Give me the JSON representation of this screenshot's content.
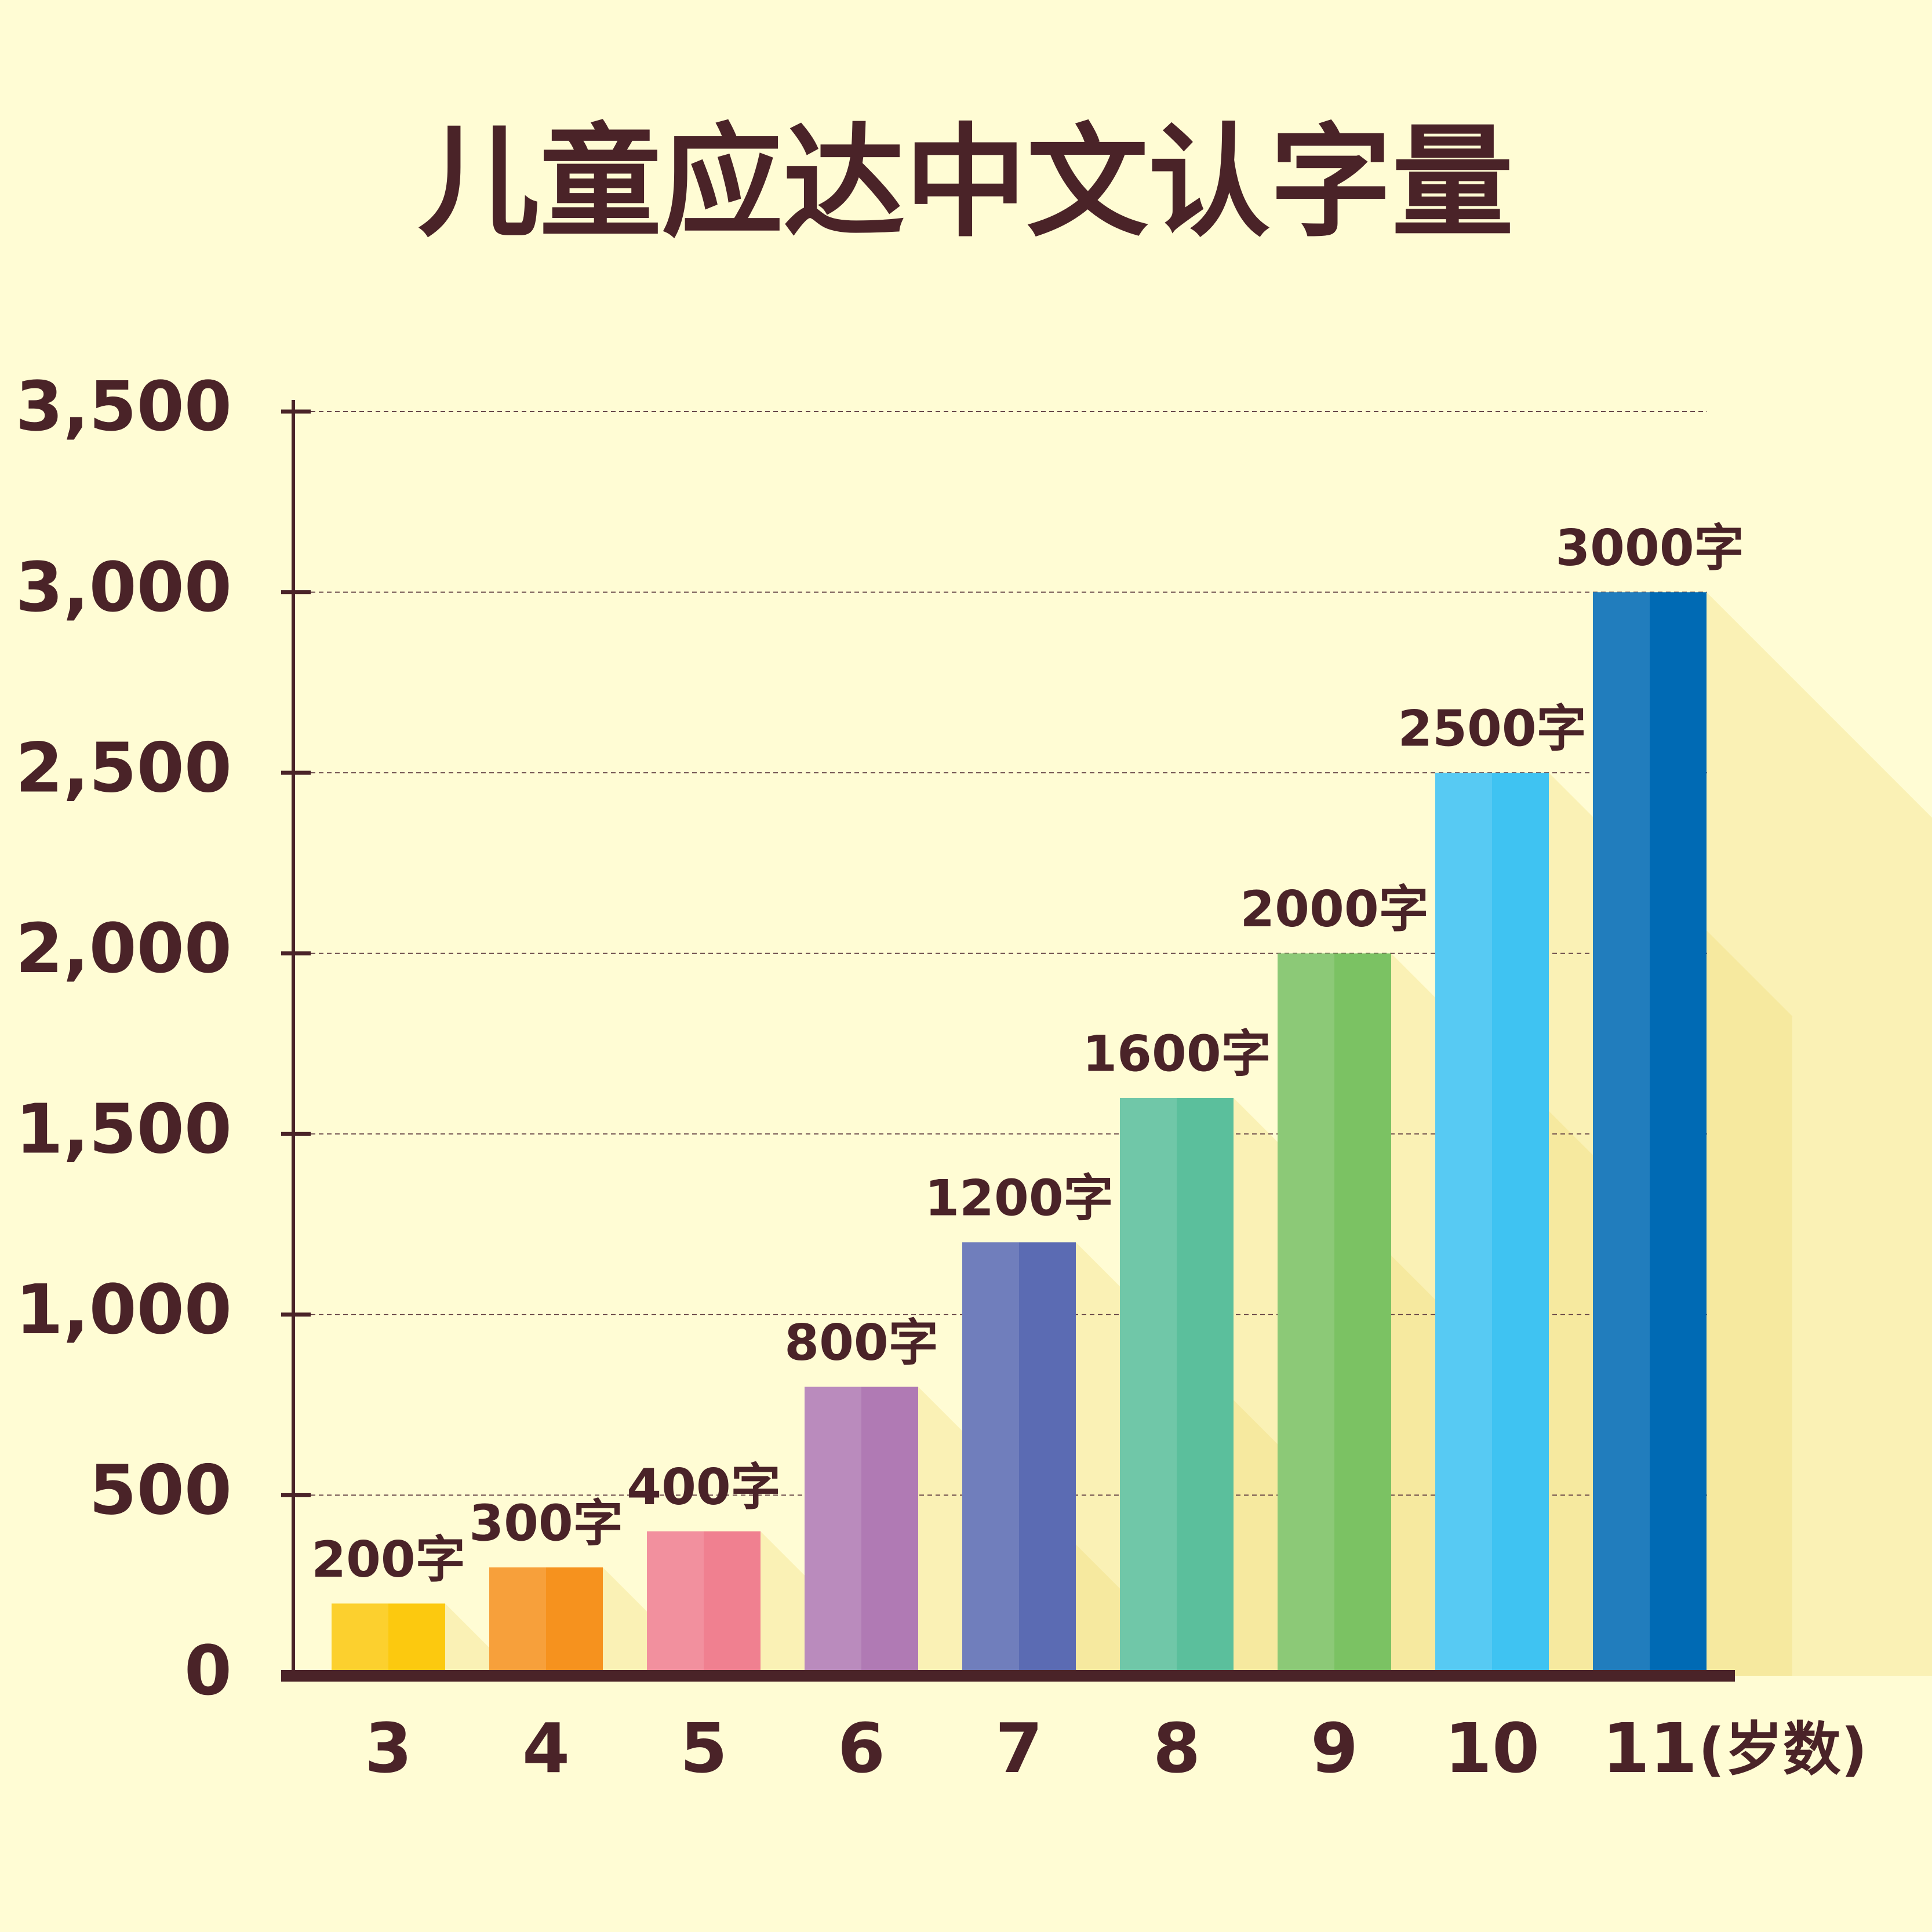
{
  "chart_data": {
    "type": "bar",
    "title": "儿童应达中文认字量",
    "categories": [
      "3",
      "4",
      "5",
      "6",
      "7",
      "8",
      "9",
      "10",
      "11"
    ],
    "values": [
      200,
      300,
      400,
      800,
      1200,
      1600,
      2000,
      2500,
      3000
    ],
    "value_labels": [
      "200字",
      "300字",
      "400字",
      "800字",
      "1200字",
      "1600字",
      "2000字",
      "2500字",
      "3000字"
    ],
    "colors": [
      "#fcc90f",
      "#f6921e",
      "#f08090",
      "#b07ab4",
      "#5b6bb3",
      "#5bbf9c",
      "#7bc263",
      "#3fc3f2",
      "#006ab4"
    ],
    "x_label": "(岁数)",
    "ylim": [
      0,
      3500
    ],
    "yticks": [
      0,
      500,
      {
        "value": 1000,
        "label": "1,000"
      },
      {
        "value": 1500,
        "label": "1,500"
      },
      {
        "value": 2000,
        "label": "2,000"
      },
      {
        "value": 2500,
        "label": "2,500"
      },
      {
        "value": 3000,
        "label": "3,000"
      },
      {
        "value": 3500,
        "label": "3,500"
      }
    ],
    "grid": true
  }
}
